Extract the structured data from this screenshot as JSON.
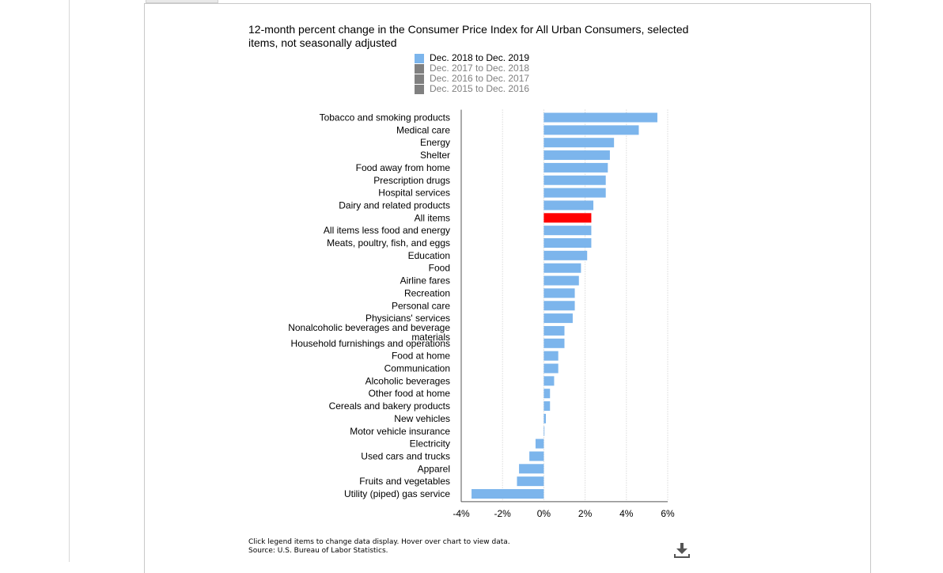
{
  "chart_data": {
    "type": "bar",
    "orientation": "horizontal",
    "title": "12-month percent change in the Consumer Price Index for All Urban Consumers, selected items, not seasonally adjusted",
    "legend": [
      {
        "label": "Dec. 2018 to Dec. 2019",
        "color": "#7cb5ec",
        "active": true
      },
      {
        "label": "Dec. 2017 to Dec. 2018",
        "color": "#808080",
        "active": false
      },
      {
        "label": "Dec. 2016 to Dec. 2017",
        "color": "#808080",
        "active": false
      },
      {
        "label": "Dec. 2015 to Dec. 2016",
        "color": "#808080",
        "active": false
      }
    ],
    "categories": [
      "Tobacco and smoking products",
      "Medical care",
      "Energy",
      "Shelter",
      "Food away from home",
      "Prescription drugs",
      "Hospital services",
      "Dairy and related products",
      "All items",
      "All items less food and energy",
      "Meats, poultry, fish, and eggs",
      "Education",
      "Food",
      "Airline fares",
      "Recreation",
      "Personal care",
      "Physicians' services",
      "Nonalcoholic beverages and beverage materials",
      "Household furnishings and operations",
      "Food at home",
      "Communication",
      "Alcoholic beverages",
      "Other food at home",
      "Cereals and bakery products",
      "New vehicles",
      "Motor vehicle insurance",
      "Electricity",
      "Used cars and trucks",
      "Apparel",
      "Fruits and vegetables",
      "Utility (piped) gas service"
    ],
    "series": [
      {
        "name": "Dec. 2018 to Dec. 2019",
        "values": [
          5.5,
          4.6,
          3.4,
          3.2,
          3.1,
          3.0,
          3.0,
          2.4,
          2.3,
          2.3,
          2.3,
          2.1,
          1.8,
          1.7,
          1.5,
          1.5,
          1.4,
          1.0,
          1.0,
          0.7,
          0.7,
          0.5,
          0.3,
          0.3,
          0.1,
          0.0,
          -0.4,
          -0.7,
          -1.2,
          -1.3,
          -3.5
        ]
      }
    ],
    "highlight": {
      "category": "All items",
      "color": "#ff0000"
    },
    "bar_color": "#7cb5ec",
    "xlim": [
      -4,
      6
    ],
    "x_ticks": [
      -4,
      -2,
      0,
      2,
      4,
      6
    ],
    "x_tick_labels": [
      "-4%",
      "-2%",
      "0%",
      "2%",
      "4%",
      "6%"
    ],
    "grid": "vertical dotted"
  },
  "footer": {
    "note": "Click legend items to change data display. Hover over chart to view data.",
    "source": "Source: U.S. Bureau of Labor Statistics."
  },
  "icons": {
    "download": "download-icon"
  }
}
